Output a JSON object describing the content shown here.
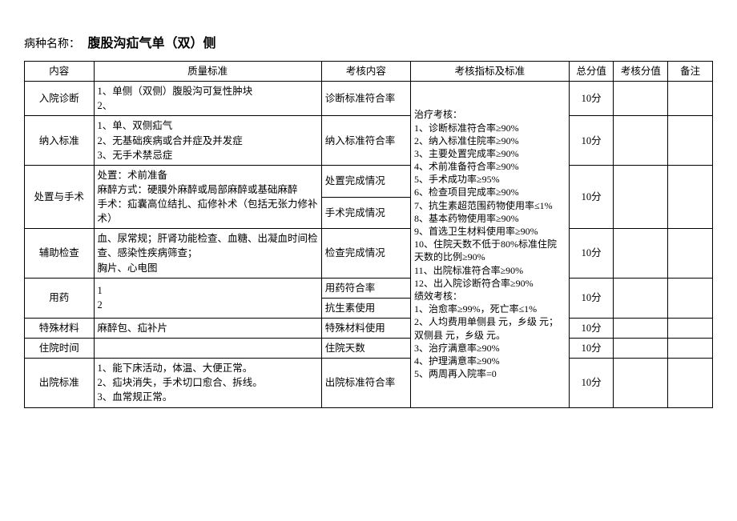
{
  "header": {
    "label": "病种名称：",
    "value": "腹股沟疝气单（双）侧"
  },
  "columns": {
    "c1": "内容",
    "c2": "质量标准",
    "c3": "考核内容",
    "c4": "考核指标及标准",
    "c5": "总分值",
    "c6": "考核分值",
    "c7": "备注"
  },
  "rows": {
    "r1": {
      "content": "入院诊断",
      "quality": "1、单侧（双侧）腹股沟可复性肿块\n2、",
      "assess": "诊断标准符合率",
      "total": "10分"
    },
    "r2": {
      "content": "纳入标准",
      "quality": "1、单、双侧疝气\n2、无基础疾病或合并症及并发症\n3、无手术禁忌症",
      "assess": "纳入标准符合率",
      "total": "10分"
    },
    "r3": {
      "content": "处置与手术",
      "quality": "处置：术前准备\n麻醉方式：硬膜外麻醉或局部麻醉或基础麻醉\n手术：疝囊高位结扎、疝修补术（包括无张力修补术）",
      "assess1": "处置完成情况",
      "assess2": "手术完成情况",
      "total": "10分"
    },
    "r4": {
      "content": "辅助检查",
      "quality": "血、尿常规；肝肾功能检查、血糖、出凝血时间检查、感染性疾病筛查；\n胸片、心电图",
      "assess": "检查完成情况",
      "total": "10分"
    },
    "r5": {
      "content": "用药",
      "quality": "1\n2",
      "assess1": "用药符合率",
      "assess2": "抗生素使用",
      "total": "10分"
    },
    "r6": {
      "content": "特殊材料",
      "quality": "麻醉包、疝补片",
      "assess": "特殊材料使用",
      "total": "10分"
    },
    "r7": {
      "content": "住院时间",
      "quality": "",
      "assess": "住院天数",
      "total": "10分"
    },
    "r8": {
      "content": "出院标准",
      "quality": "1、能下床活动，体温、大便正常。\n2、疝块消失，手术切口愈合、拆线。\n3、血常规正常。",
      "assess": "出院标准符合率",
      "total": "10分"
    }
  },
  "metrics": "治疗考核：\n1、诊断标准符合率≥90%\n2、纳入标准住院率≥90%\n3、主要处置完成率≥90%\n4、术前准备符合率≥90%\n5、手术成功率≥95%\n6、检查项目完成率≥90%\n7、抗生素超范围药物使用率≤1%\n8、基本药物使用率≥90%\n9、首选卫生材料使用率≥90%\n10、住院天数不低于80%标准住院天数的比例≥90%\n11、出院标准符合率≥90%\n12、出入院诊断符合率≥90%\n绩效考核：\n1、治愈率≥99%，死亡率≤1%\n2、人均费用单侧县    元，乡级    元；双侧县    元，乡级    元。\n3、治疗满意率≥90%\n4、护理满意率≥90%\n5、两周再入院率=0"
}
